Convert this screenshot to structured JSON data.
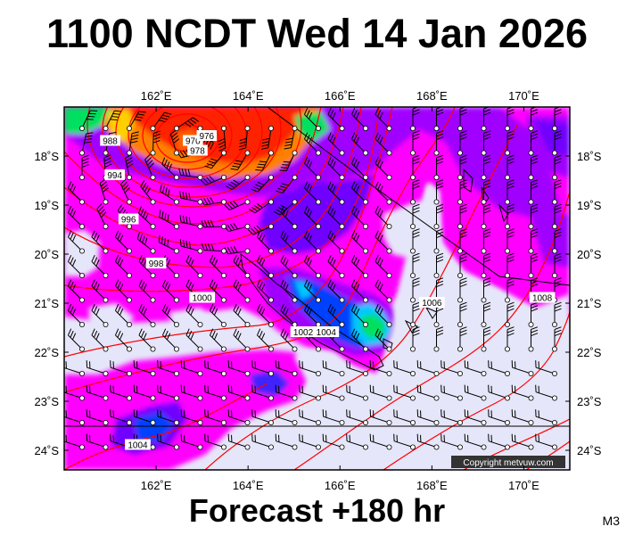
{
  "title": "1100 NCDT Wed 14 Jan 2026",
  "forecast": "Forecast +180 hr",
  "model_code": "M3",
  "copyright": "Copyright metvuw.com",
  "map": {
    "lon_range": [
      160,
      171
    ],
    "lat_range": [
      -24.4,
      -17.0
    ],
    "lon_ticks": [
      {
        "value": 162,
        "label": "162˚E"
      },
      {
        "value": 164,
        "label": "164˚E"
      },
      {
        "value": 166,
        "label": "166˚E"
      },
      {
        "value": 168,
        "label": "168˚E"
      },
      {
        "value": 170,
        "label": "170˚E"
      }
    ],
    "lat_ticks": [
      {
        "value": -18,
        "label": "18˚S"
      },
      {
        "value": -19,
        "label": "19˚S"
      },
      {
        "value": -20,
        "label": "20˚S"
      },
      {
        "value": -21,
        "label": "21˚S"
      },
      {
        "value": -22,
        "label": "22˚S"
      },
      {
        "value": -23,
        "label": "23˚S"
      },
      {
        "value": -24,
        "label": "24˚S"
      }
    ],
    "isobar_labels": [
      {
        "text": "970",
        "lon": 162.8,
        "lat": -17.7
      },
      {
        "text": "976",
        "lon": 163.1,
        "lat": -17.6
      },
      {
        "text": "978",
        "lon": 162.9,
        "lat": -17.9
      },
      {
        "text": "988",
        "lon": 161.0,
        "lat": -17.7
      },
      {
        "text": "994",
        "lon": 161.1,
        "lat": -18.4
      },
      {
        "text": "996",
        "lon": 161.4,
        "lat": -19.3
      },
      {
        "text": "998",
        "lon": 162.0,
        "lat": -20.2
      },
      {
        "text": "1000",
        "lon": 163.0,
        "lat": -20.9
      },
      {
        "text": "1002",
        "lon": 165.2,
        "lat": -21.6
      },
      {
        "text": "1004",
        "lon": 165.7,
        "lat": -21.6
      },
      {
        "text": "1006",
        "lon": 168.0,
        "lat": -21.0
      },
      {
        "text": "1008",
        "lon": 170.4,
        "lat": -20.9
      },
      {
        "text": "1004",
        "lon": 161.6,
        "lat": -23.9
      }
    ],
    "colors": {
      "background": "#e6e6fa",
      "magenta": "#ff00ff",
      "purple": "#a000ff",
      "violet": "#7000ff",
      "blue": "#0040ff",
      "cyan": "#00c8ff",
      "green": "#00e060",
      "orange": "#ff8000",
      "red": "#ff2000",
      "isobar": "#ff0000"
    }
  }
}
